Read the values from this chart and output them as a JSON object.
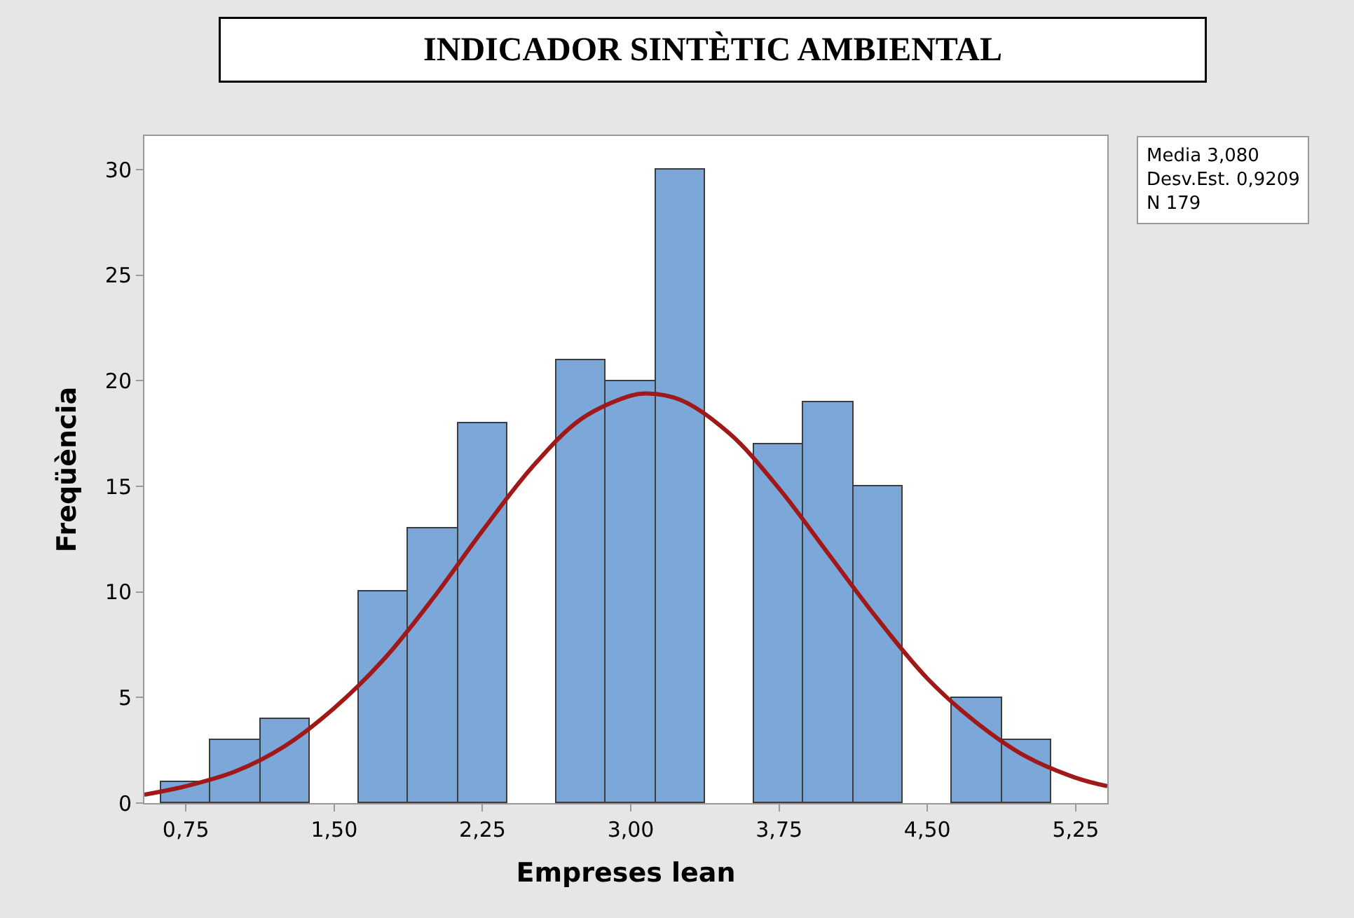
{
  "chart_data": {
    "type": "histogram",
    "title": "INDICADOR SINTÈTIC AMBIENTAL",
    "xlabel": "Empreses lean",
    "ylabel": "Freqüència",
    "bins": [
      0.625,
      0.875,
      1.125,
      1.375,
      1.625,
      1.875,
      2.125,
      2.375,
      2.625,
      2.875,
      3.125,
      3.375,
      3.625,
      3.875,
      4.125,
      4.375,
      4.625,
      4.875,
      5.125
    ],
    "values": [
      1,
      3,
      4,
      0,
      10,
      13,
      18,
      0,
      21,
      20,
      30,
      0,
      17,
      19,
      15,
      0,
      5,
      3
    ],
    "color": "#7ba7d9",
    "series": [
      {
        "type": "line",
        "color": "#a01818",
        "x": [
          0.54,
          0.75,
          1.0,
          1.25,
          1.5,
          1.75,
          2.0,
          2.25,
          2.5,
          2.75,
          3.0,
          3.08,
          3.25,
          3.5,
          3.75,
          4.0,
          4.25,
          4.5,
          4.75,
          5.0,
          5.25,
          5.41
        ],
        "values": [
          0.4,
          0.8,
          1.5,
          2.7,
          4.5,
          6.8,
          9.7,
          12.9,
          15.9,
          18.2,
          19.3,
          19.4,
          19.1,
          17.5,
          14.9,
          11.8,
          8.7,
          5.9,
          3.8,
          2.2,
          1.2,
          0.8
        ]
      }
    ],
    "xlim": [
      0.54,
      5.41
    ],
    "ylim": [
      0,
      31.6
    ],
    "xticks": [
      {
        "value": 0.75,
        "label": "0,75"
      },
      {
        "value": 1.5,
        "label": "1,50"
      },
      {
        "value": 2.25,
        "label": "2,25"
      },
      {
        "value": 3.0,
        "label": "3,00"
      },
      {
        "value": 3.75,
        "label": "3,75"
      },
      {
        "value": 4.5,
        "label": "4,50"
      },
      {
        "value": 5.25,
        "label": "5,25"
      }
    ],
    "yticks": [
      0,
      5,
      10,
      15,
      20,
      25,
      30
    ],
    "annotations": [
      "Media 3,080",
      "Desv.Est. 0,9209",
      "N 179"
    ]
  }
}
